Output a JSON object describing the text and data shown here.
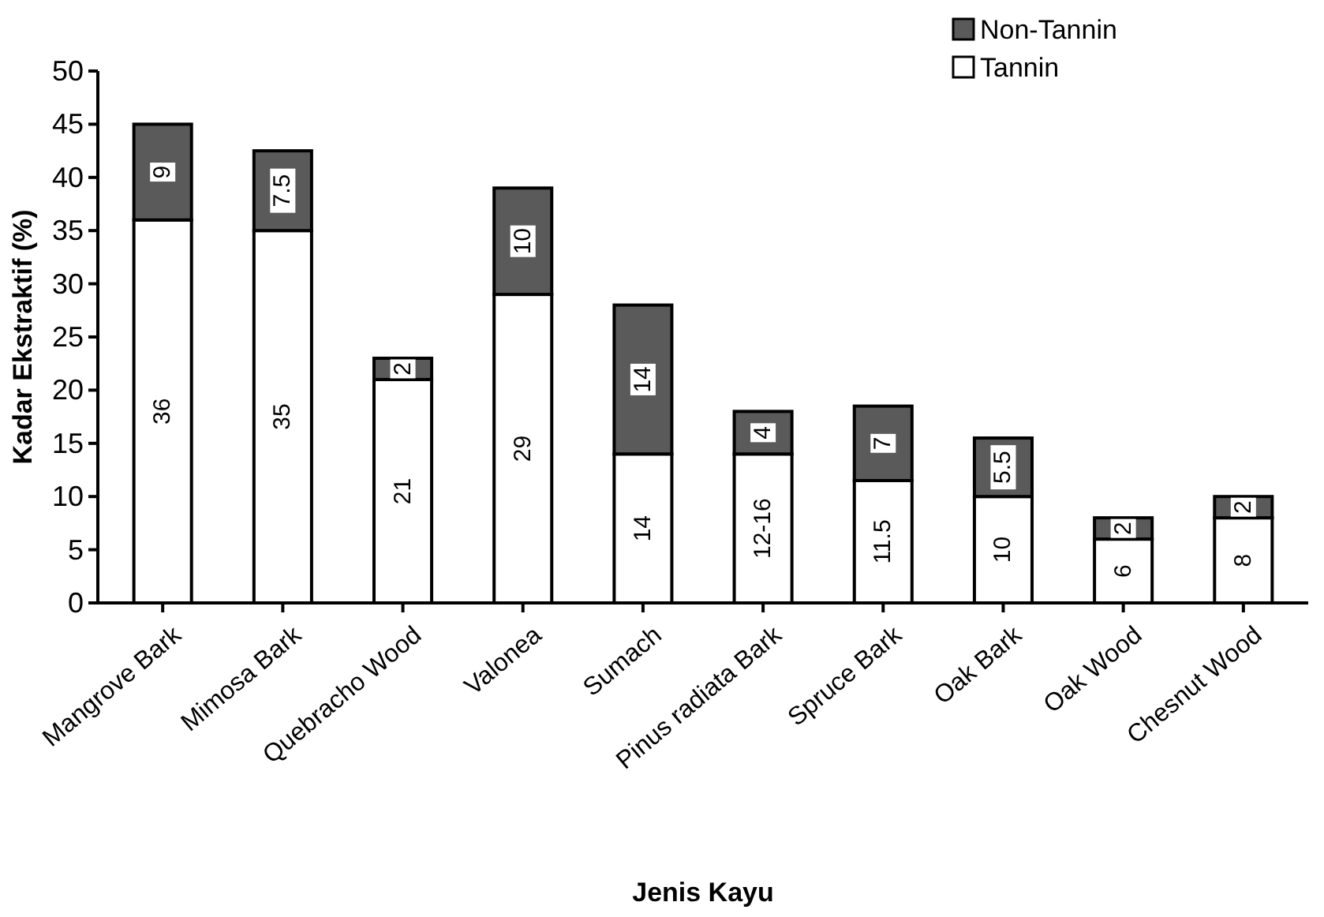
{
  "chart_data": {
    "type": "bar",
    "stacked": true,
    "xlabel": "Jenis Kayu",
    "ylabel": "Kadar Ekstraktif (%)",
    "categories": [
      "Mangrove Bark",
      "Mimosa Bark",
      "Quebracho Wood",
      "Valonea",
      "Sumach",
      "Pinus radiata Bark",
      "Spruce Bark",
      "Oak Bark",
      "Oak Wood",
      "Chesnut Wood"
    ],
    "series": [
      {
        "name": "Tannin",
        "color": "#ffffff",
        "values": [
          36,
          35,
          21,
          29,
          14,
          14,
          11.5,
          10,
          6,
          8
        ],
        "value_labels": [
          "36",
          "35",
          "21",
          "29",
          "14",
          "12-16",
          "11.5",
          "10",
          "6",
          "8"
        ]
      },
      {
        "name": "Non-Tannin",
        "color": "#5a5a5a",
        "values": [
          9,
          7.5,
          2,
          10,
          14,
          4,
          7,
          5.5,
          2,
          2
        ],
        "value_labels": [
          "9",
          "7.5",
          "2",
          "10",
          "14",
          "4",
          "7",
          "5.5",
          "2",
          "2"
        ]
      }
    ],
    "ylim": [
      0,
      50
    ],
    "yticks": [
      0,
      5,
      10,
      15,
      20,
      25,
      30,
      35,
      40,
      45,
      50
    ],
    "legend": "top right"
  }
}
